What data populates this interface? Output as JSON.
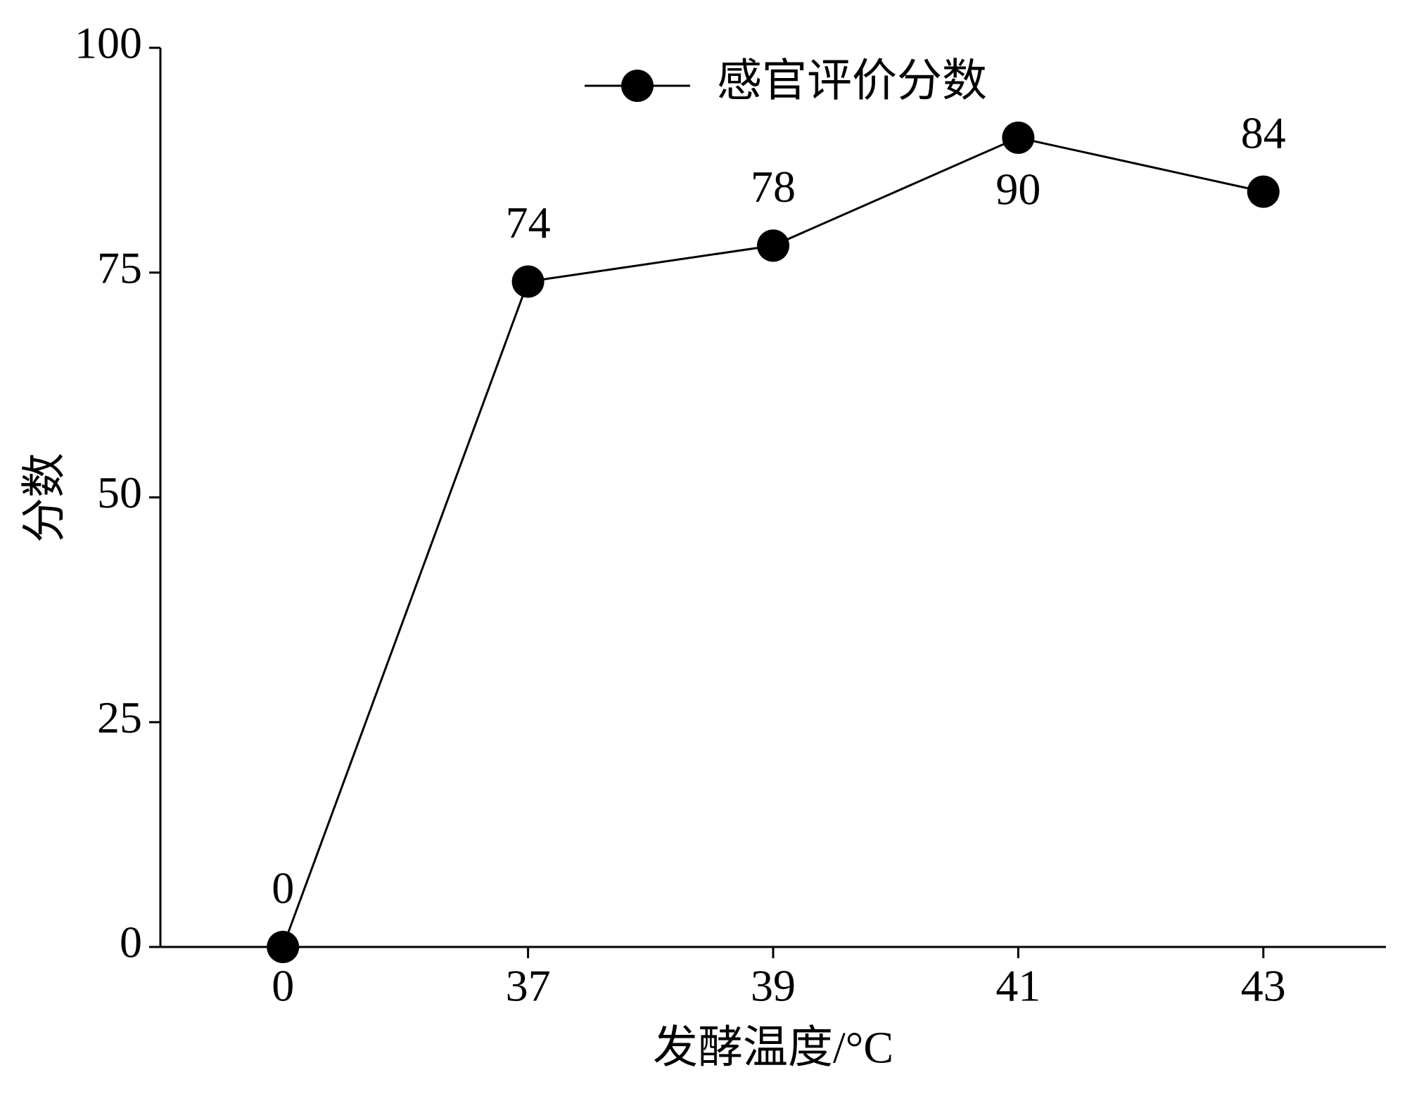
{
  "chart_data": {
    "type": "line",
    "xlabel": "发酵温度/°C",
    "ylabel": "分数",
    "categories": [
      "0",
      "37",
      "39",
      "41",
      "43"
    ],
    "series": [
      {
        "name": "感官评价分数",
        "color": "#000000",
        "values": [
          0,
          74,
          78,
          90,
          84
        ]
      }
    ],
    "ylim": [
      0,
      100
    ],
    "yticks": [
      0,
      25,
      50,
      75,
      100
    ],
    "legend": "top"
  }
}
